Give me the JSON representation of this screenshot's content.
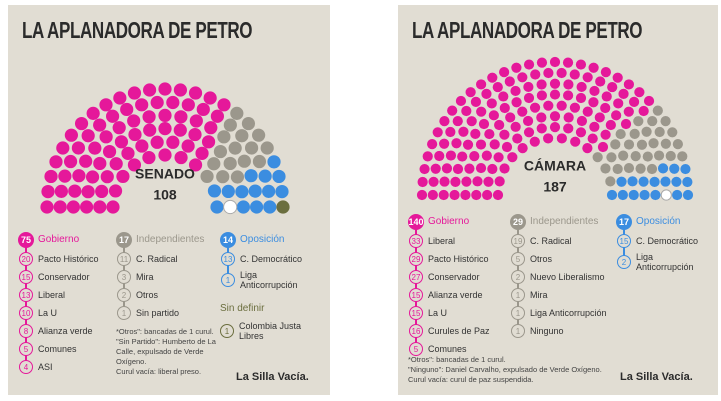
{
  "panels": [
    {
      "title": "LA APLANADORA DE PETRO",
      "chamber": "SENADO",
      "total": 108,
      "groups": [
        {
          "name": "Gobierno",
          "count": 75,
          "color": "#e5189a",
          "parties": [
            {
              "count": 20,
              "name": "Pacto Histórico"
            },
            {
              "count": 15,
              "name": "Conservador"
            },
            {
              "count": 13,
              "name": "Liberal"
            },
            {
              "count": 10,
              "name": "La U"
            },
            {
              "count": 8,
              "name": "Alianza verde"
            },
            {
              "count": 5,
              "name": "Comunes"
            },
            {
              "count": 4,
              "name": "ASI"
            }
          ]
        },
        {
          "name": "Independientes",
          "count": 17,
          "color": "#9b978c",
          "parties": [
            {
              "count": 11,
              "name": "C. Radical"
            },
            {
              "count": 3,
              "name": "Mira"
            },
            {
              "count": 2,
              "name": "Otros"
            },
            {
              "count": 1,
              "name": "Sin partido"
            }
          ]
        },
        {
          "name": "Oposición",
          "count": 14,
          "color": "#3b8de0",
          "parties": [
            {
              "count": 13,
              "name": "C. Democrático"
            },
            {
              "count": 1,
              "name": "Liga Anticorrupción"
            }
          ]
        },
        {
          "name": "Sin definir",
          "color": "#6b6e3e",
          "parties": [
            {
              "count": 1,
              "name": "Colombia Justa Libres"
            }
          ]
        }
      ],
      "notes": [
        "*Otros\": bancadas de 1 curul.",
        "\"Sin Partido\": Humberto de La Calle, expulsado de Verde Oxígeno.",
        "Curul vacía: liberal preso."
      ],
      "logo": "La Silla Vacía."
    },
    {
      "title": "LA APLANADORA DE PETRO",
      "chamber": "CÁMARA",
      "total": 187,
      "groups": [
        {
          "name": "Gobierno",
          "count": 140,
          "color": "#e5189a",
          "parties": [
            {
              "count": 33,
              "name": "Liberal"
            },
            {
              "count": 29,
              "name": "Pacto Histórico"
            },
            {
              "count": 27,
              "name": "Conservador"
            },
            {
              "count": 15,
              "name": "Alianza verde"
            },
            {
              "count": 15,
              "name": "La U"
            },
            {
              "count": 16,
              "name": "Curules de Paz"
            },
            {
              "count": 5,
              "name": "Comunes"
            }
          ]
        },
        {
          "name": "Independientes",
          "count": 29,
          "color": "#9b978c",
          "parties": [
            {
              "count": 19,
              "name": "C. Radical"
            },
            {
              "count": 5,
              "name": "Otros"
            },
            {
              "count": 2,
              "name": "Nuevo Liberalismo"
            },
            {
              "count": 1,
              "name": "Mira"
            },
            {
              "count": 1,
              "name": "Liga Anticorrupción"
            },
            {
              "count": 1,
              "name": "Ninguno"
            }
          ]
        },
        {
          "name": "Oposición",
          "count": 17,
          "color": "#3b8de0",
          "parties": [
            {
              "count": 15,
              "name": "C. Democrático"
            },
            {
              "count": 2,
              "name": "Liga Anticorrupción"
            }
          ]
        }
      ],
      "notes": [
        "*Otros\": bancadas de 1 curul.",
        "\"Ninguno\": Daniel Carvalho, expulsado de Verde Oxígeno.",
        "Curul vacía: curul de paz suspendida."
      ],
      "logo": "La Silla Vacía."
    }
  ]
}
